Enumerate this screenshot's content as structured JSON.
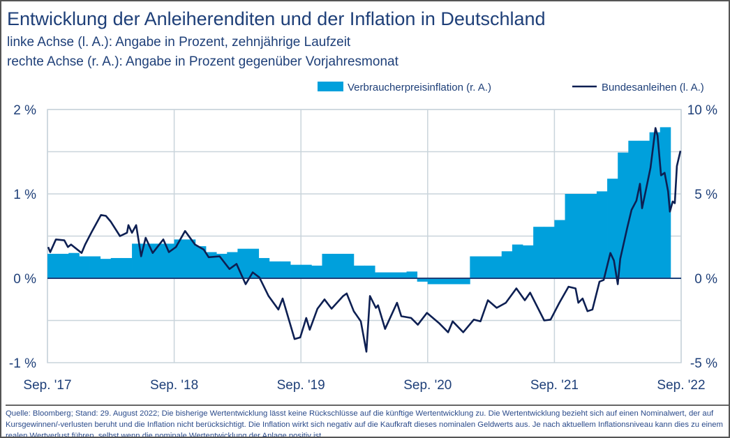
{
  "header": {
    "title": "Entwicklung der Anleiherenditen und der Inflation in Deutschland",
    "subtitle_left": "linke Achse (l. A.): Angabe in Prozent, zehnjährige Laufzeit",
    "subtitle_right": "rechte Achse (r. A.): Angabe in Prozent gegenüber Vorjahresmonat"
  },
  "footer": {
    "text": "Quelle: Bloomberg; Stand: 29. August 2022; Die bisherige Wertentwicklung lässt keine Rückschlüsse auf die künftige Wertentwicklung zu. Die Wertentwicklung bezieht sich auf einen Nominalwert, der auf Kursgewinnen/-verlusten beruht und die Inflation nicht berücksichtigt. Die Inflation wirkt sich negativ auf die Kaufkraft dieses nominalen Geldwerts aus. Je nach aktuellem Inflationsniveau kann dies zu einem realen Wertverlust führen, selbst wenn die nominale Wertentwicklung der Anlage positiv ist."
  },
  "chart_data": {
    "type": "line+area",
    "legend_position": "top-right",
    "grid": true,
    "colors": {
      "inflation": "#00a0dc",
      "bund": "#0d1f52",
      "grid": "#c9d4db",
      "zero_line": "#1e3f78"
    },
    "x_ticks": [
      "Sep. '17",
      "Sep. '18",
      "Sep. '19",
      "Sep. '20",
      "Sep. '21",
      "Sep. '22"
    ],
    "x_tick_dates": [
      "2017-09-01",
      "2018-09-01",
      "2019-09-01",
      "2020-09-01",
      "2021-09-01",
      "2022-09-01"
    ],
    "y_left": {
      "ticks": [
        "2 %",
        "1 %",
        "0 %",
        "-1 %"
      ],
      "range": [
        -1,
        2
      ]
    },
    "y_right": {
      "ticks": [
        "10 %",
        "5 %",
        "0 %",
        "-5 %"
      ],
      "range": [
        -5,
        10
      ]
    },
    "series": [
      {
        "name": "Verbraucherpreisinflation (r. A.)",
        "axis": "right",
        "kind": "step-area",
        "start_month": "2017-09",
        "monthly_values": [
          1.45,
          1.45,
          1.5,
          1.3,
          1.3,
          1.15,
          1.2,
          1.2,
          2.05,
          2.05,
          2.05,
          2.05,
          2.3,
          2.3,
          1.9,
          1.55,
          1.45,
          1.55,
          1.75,
          1.75,
          1.2,
          1.0,
          1.0,
          0.8,
          0.8,
          0.75,
          1.45,
          1.45,
          1.45,
          0.75,
          0.75,
          0.35,
          0.35,
          0.35,
          0.4,
          -0.2,
          -0.35,
          -0.35,
          -0.35,
          -0.35,
          1.3,
          1.3,
          1.3,
          1.6,
          2.0,
          1.95,
          3.05,
          3.05,
          3.45,
          5.0,
          5.0,
          5.0,
          5.15,
          5.9,
          7.45,
          8.15,
          8.15,
          8.65,
          8.95
        ]
      },
      {
        "name": "Bundesanleihen (l. A.)",
        "axis": "left",
        "kind": "line",
        "points": [
          [
            "2017-09-03",
            0.37
          ],
          [
            "2017-09-09",
            0.31
          ],
          [
            "2017-09-25",
            0.46
          ],
          [
            "2017-10-19",
            0.45
          ],
          [
            "2017-10-29",
            0.37
          ],
          [
            "2017-11-08",
            0.4
          ],
          [
            "2017-12-08",
            0.3
          ],
          [
            "2017-12-18",
            0.4
          ],
          [
            "2018-01-08",
            0.56
          ],
          [
            "2018-02-03",
            0.75
          ],
          [
            "2018-02-17",
            0.74
          ],
          [
            "2018-03-01",
            0.67
          ],
          [
            "2018-03-27",
            0.5
          ],
          [
            "2018-04-17",
            0.54
          ],
          [
            "2018-04-21",
            0.63
          ],
          [
            "2018-05-01",
            0.54
          ],
          [
            "2018-05-13",
            0.63
          ],
          [
            "2018-05-27",
            0.26
          ],
          [
            "2018-06-10",
            0.48
          ],
          [
            "2018-06-30",
            0.3
          ],
          [
            "2018-07-30",
            0.46
          ],
          [
            "2018-08-16",
            0.31
          ],
          [
            "2018-09-06",
            0.37
          ],
          [
            "2018-10-02",
            0.56
          ],
          [
            "2018-10-30",
            0.4
          ],
          [
            "2018-11-25",
            0.34
          ],
          [
            "2018-12-09",
            0.25
          ],
          [
            "2019-01-10",
            0.26
          ],
          [
            "2019-02-08",
            0.11
          ],
          [
            "2019-02-28",
            0.17
          ],
          [
            "2019-03-24",
            -0.07
          ],
          [
            "2019-04-14",
            0.07
          ],
          [
            "2019-05-03",
            0.01
          ],
          [
            "2019-05-29",
            -0.21
          ],
          [
            "2019-06-27",
            -0.37
          ],
          [
            "2019-07-09",
            -0.24
          ],
          [
            "2019-08-13",
            -0.72
          ],
          [
            "2019-08-29",
            -0.7
          ],
          [
            "2019-09-16",
            -0.47
          ],
          [
            "2019-09-26",
            -0.61
          ],
          [
            "2019-10-18",
            -0.36
          ],
          [
            "2019-11-08",
            -0.25
          ],
          [
            "2019-11-28",
            -0.36
          ],
          [
            "2020-01-01",
            -0.21
          ],
          [
            "2020-01-11",
            -0.18
          ],
          [
            "2020-02-01",
            -0.39
          ],
          [
            "2020-02-21",
            -0.51
          ],
          [
            "2020-03-07",
            -0.87
          ],
          [
            "2020-03-17",
            -0.21
          ],
          [
            "2020-04-04",
            -0.35
          ],
          [
            "2020-04-10",
            -0.32
          ],
          [
            "2020-04-30",
            -0.6
          ],
          [
            "2020-06-04",
            -0.29
          ],
          [
            "2020-06-16",
            -0.45
          ],
          [
            "2020-07-14",
            -0.47
          ],
          [
            "2020-08-03",
            -0.55
          ],
          [
            "2020-08-29",
            -0.41
          ],
          [
            "2020-10-03",
            -0.53
          ],
          [
            "2020-10-29",
            -0.64
          ],
          [
            "2020-11-12",
            -0.51
          ],
          [
            "2020-12-12",
            -0.64
          ],
          [
            "2021-01-12",
            -0.49
          ],
          [
            "2021-02-01",
            -0.51
          ],
          [
            "2021-02-22",
            -0.26
          ],
          [
            "2021-03-17",
            -0.35
          ],
          [
            "2021-04-13",
            -0.29
          ],
          [
            "2021-05-13",
            -0.12
          ],
          [
            "2021-06-07",
            -0.26
          ],
          [
            "2021-06-22",
            -0.17
          ],
          [
            "2021-08-02",
            -0.5
          ],
          [
            "2021-08-20",
            -0.49
          ],
          [
            "2021-09-15",
            -0.29
          ],
          [
            "2021-10-11",
            -0.1
          ],
          [
            "2021-11-01",
            -0.12
          ],
          [
            "2021-11-09",
            -0.29
          ],
          [
            "2021-11-21",
            -0.24
          ],
          [
            "2021-12-05",
            -0.39
          ],
          [
            "2021-12-19",
            -0.37
          ],
          [
            "2022-01-09",
            -0.04
          ],
          [
            "2022-01-21",
            -0.02
          ],
          [
            "2022-02-10",
            0.3
          ],
          [
            "2022-02-20",
            0.21
          ],
          [
            "2022-03-01",
            -0.07
          ],
          [
            "2022-03-08",
            0.23
          ],
          [
            "2022-03-28",
            0.6
          ],
          [
            "2022-04-10",
            0.81
          ],
          [
            "2022-04-24",
            0.92
          ],
          [
            "2022-05-04",
            1.12
          ],
          [
            "2022-05-10",
            0.83
          ],
          [
            "2022-05-20",
            1.03
          ],
          [
            "2022-06-04",
            1.31
          ],
          [
            "2022-06-18",
            1.78
          ],
          [
            "2022-06-24",
            1.69
          ],
          [
            "2022-07-04",
            1.22
          ],
          [
            "2022-07-14",
            1.25
          ],
          [
            "2022-07-24",
            1.03
          ],
          [
            "2022-07-29",
            0.79
          ],
          [
            "2022-08-07",
            0.91
          ],
          [
            "2022-08-13",
            0.89
          ],
          [
            "2022-08-19",
            1.33
          ],
          [
            "2022-08-29",
            1.51
          ]
        ]
      }
    ]
  }
}
